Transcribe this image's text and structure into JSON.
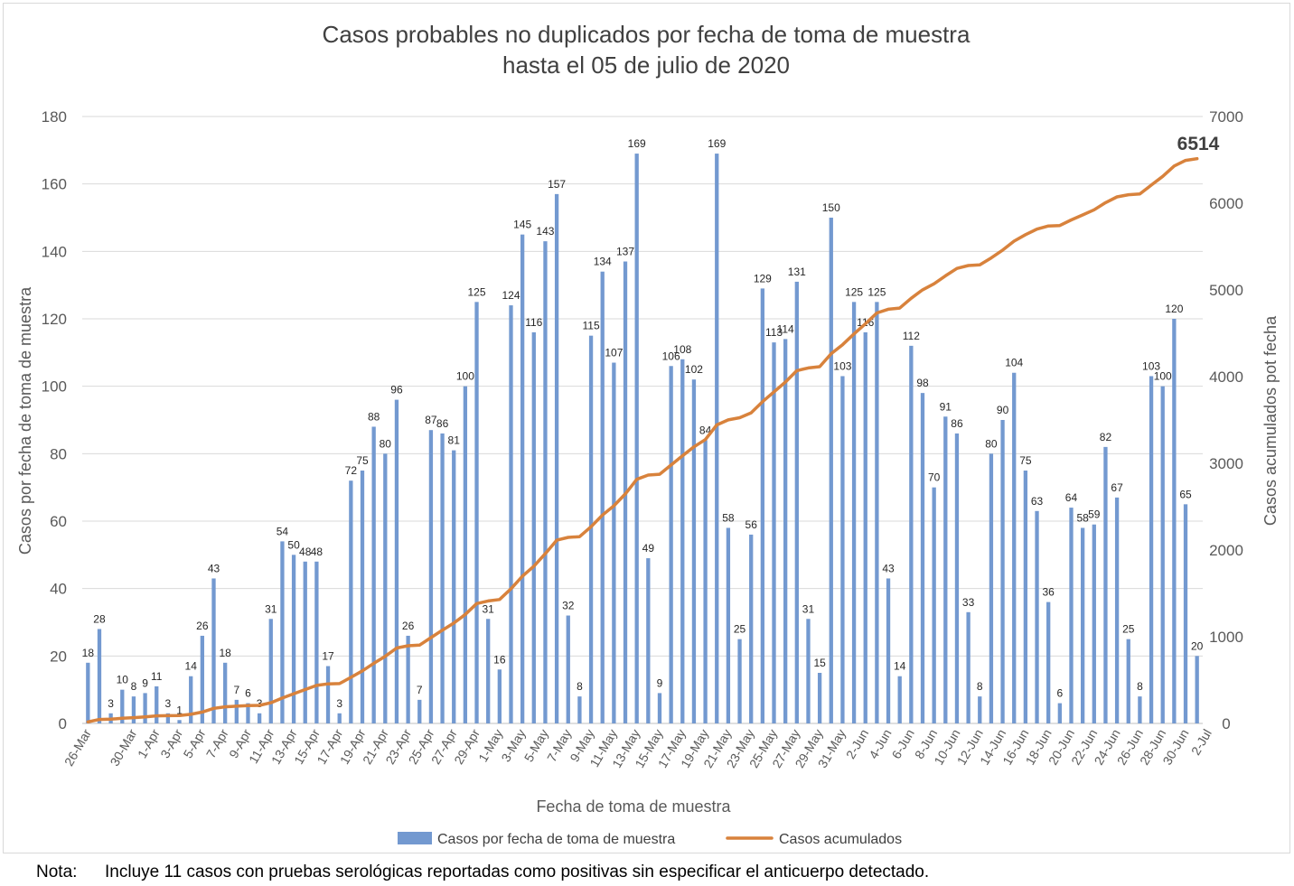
{
  "chart_data": {
    "type": "bar+line",
    "title": [
      "Casos probables no duplicados por fecha de toma de muestra",
      "hasta el 05 de julio de 2020"
    ],
    "xlabel": "Fecha de toma de muestra",
    "ylabel_left": "Casos por fecha de toma de muestra",
    "ylabel_right": "Casos acumulados pot fecha",
    "ylim_left": [
      0,
      180
    ],
    "yticks_left": [
      "0",
      "20",
      "40",
      "60",
      "80",
      "100",
      "120",
      "140",
      "160",
      "180"
    ],
    "ylim_right": [
      0,
      7000
    ],
    "yticks_right": [
      "0",
      "1000",
      "2000",
      "3000",
      "4000",
      "5000",
      "6000",
      "7000"
    ],
    "x_tick_labels": [
      "26-Mar",
      "30-Mar",
      "1-Apr",
      "3-Apr",
      "5-Apr",
      "7-Apr",
      "9-Apr",
      "11-Apr",
      "13-Apr",
      "15-Apr",
      "17-Apr",
      "19-Apr",
      "21-Apr",
      "23-Apr",
      "25-Apr",
      "27-Apr",
      "29-Apr",
      "1-May",
      "3-May",
      "5-May",
      "7-May",
      "9-May",
      "11-May",
      "13-May",
      "15-May",
      "17-May",
      "19-May",
      "21-May",
      "23-May",
      "25-May",
      "27-May",
      "29-May",
      "31-May",
      "2-Jun",
      "4-Jun",
      "6-Jun",
      "8-Jun",
      "10-Jun",
      "12-Jun",
      "14-Jun",
      "16-Jun",
      "18-Jun",
      "20-Jun",
      "22-Jun",
      "24-Jun",
      "26-Jun",
      "28-Jun",
      "30-Jun",
      "2-Jul"
    ],
    "series": [
      {
        "name": "Casos por fecha de toma de muestra",
        "type": "bar",
        "color": "#7399d0",
        "values": [
          18,
          28,
          3,
          10,
          8,
          9,
          11,
          3,
          1,
          14,
          26,
          43,
          18,
          7,
          6,
          3,
          31,
          54,
          50,
          48,
          48,
          17,
          3,
          72,
          75,
          88,
          80,
          96,
          26,
          7,
          87,
          86,
          81,
          100,
          125,
          31,
          16,
          124,
          145,
          116,
          143,
          157,
          32,
          8,
          115,
          134,
          107,
          137,
          169,
          49,
          9,
          106,
          108,
          102,
          84,
          169,
          58,
          25,
          56,
          129,
          113,
          114,
          131,
          31,
          15,
          150,
          103,
          125,
          116,
          125,
          43,
          14,
          112,
          98,
          70,
          91,
          86,
          33,
          8,
          80,
          90,
          104,
          75,
          63,
          36,
          6,
          64,
          58,
          59,
          82,
          67,
          25,
          8,
          103,
          100,
          120,
          65,
          20
        ]
      },
      {
        "name": "Casos acumulados",
        "type": "line",
        "color": "#d8823c",
        "values": [
          18,
          46,
          49,
          59,
          67,
          76,
          87,
          90,
          91,
          105,
          131,
          174,
          192,
          199,
          205,
          208,
          239,
          293,
          343,
          391,
          439,
          456,
          459,
          531,
          606,
          694,
          774,
          870,
          896,
          903,
          990,
          1076,
          1157,
          1257,
          1382,
          1413,
          1429,
          1553,
          1698,
          1814,
          1957,
          2114,
          2146,
          2154,
          2269,
          2403,
          2510,
          2647,
          2816,
          2865,
          2874,
          2980,
          3088,
          3190,
          3274,
          3443,
          3501,
          3526,
          3582,
          3711,
          3824,
          3938,
          4069,
          4100,
          4115,
          4265,
          4368,
          4493,
          4609,
          4734,
          4777,
          4791,
          4903,
          5001,
          5071,
          5162,
          5248,
          5281,
          5289,
          5369,
          5459,
          5563,
          5638,
          5701,
          5737,
          5743,
          5807,
          5865,
          5924,
          6006,
          6073,
          6098,
          6106,
          6209,
          6309,
          6429,
          6494,
          6514
        ]
      }
    ],
    "final_label": "6514",
    "legend_position": "bottom",
    "grid": true
  },
  "note": {
    "label": "Nota:",
    "text": "Incluye 11 casos con pruebas serológicas reportadas como positivas sin especificar el anticuerpo detectado."
  }
}
